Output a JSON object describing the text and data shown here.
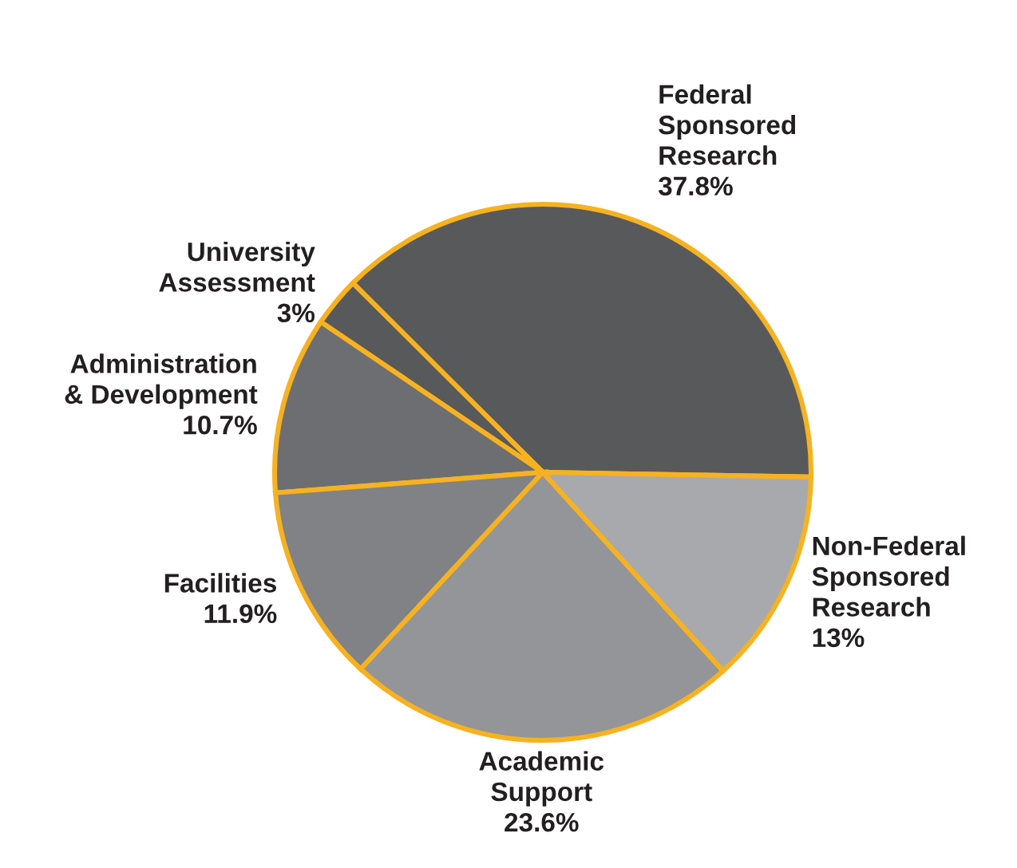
{
  "chart_data": {
    "type": "pie",
    "categories": [
      "Federal\nSponsored\nResearch",
      "University\nAssessment",
      "Administration\n& Development",
      "Facilities",
      "Academic\nSupport",
      "Non-Federal\nSponsored\nResearch"
    ],
    "values": [
      37.8,
      3,
      10.7,
      11.9,
      23.6,
      13
    ],
    "value_labels": [
      "37.8%",
      "3%",
      "10.7%",
      "11.9%",
      "23.6%",
      "13%"
    ],
    "colors": [
      "#58595b",
      "#58595b",
      "#6d6e71",
      "#808285",
      "#939598",
      "#a7a9ac"
    ],
    "legend": false
  }
}
